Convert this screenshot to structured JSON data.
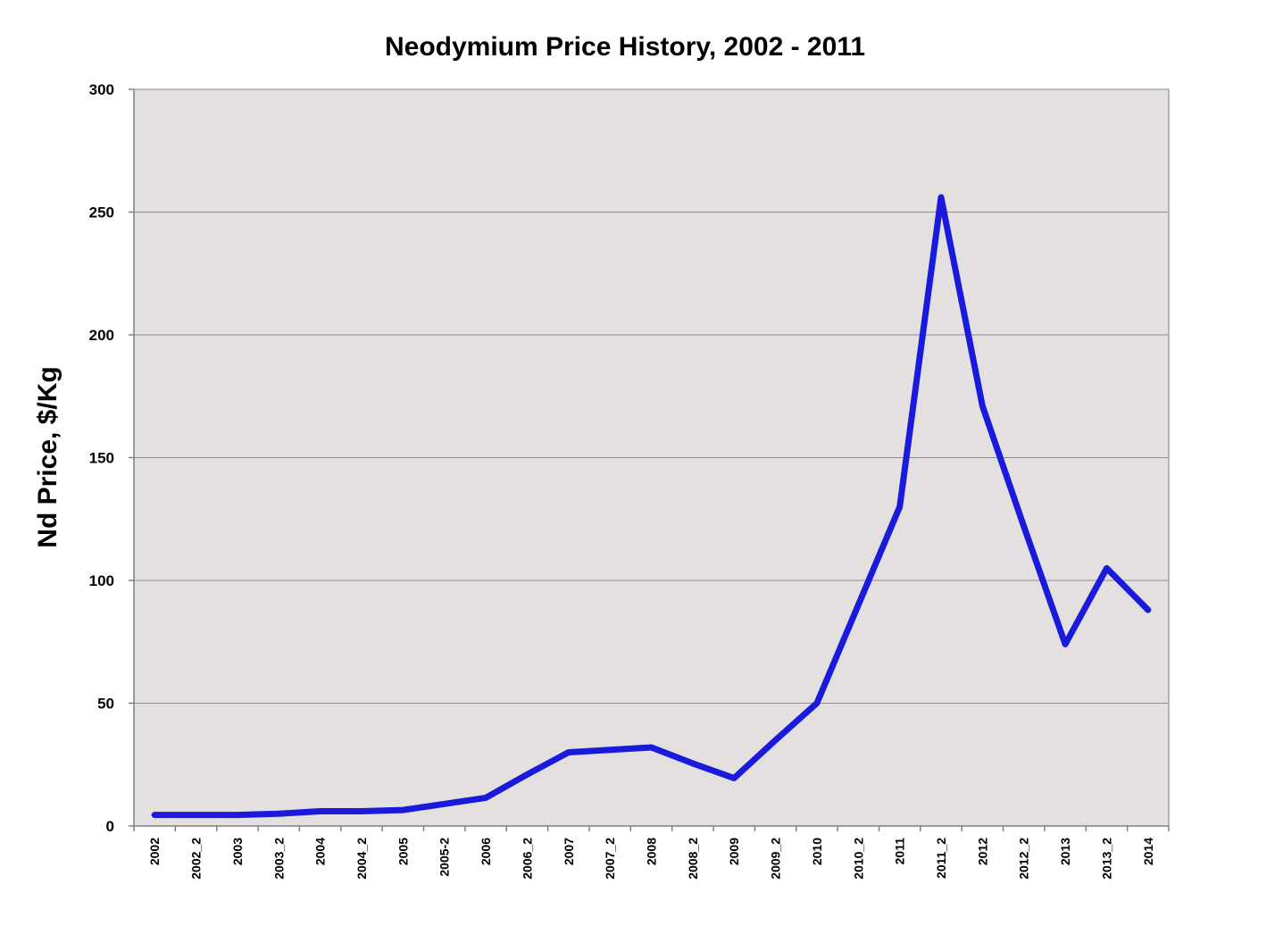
{
  "chart_data": {
    "type": "line",
    "title": "Neodymium Price History, 2002 - 2011",
    "xlabel": "",
    "ylabel": "Nd Price, $/Kg",
    "ylim": [
      0,
      300
    ],
    "yticks": [
      0,
      50,
      100,
      150,
      200,
      250,
      300
    ],
    "grid": true,
    "categories": [
      "2002",
      "2002_2",
      "2003",
      "2003_2",
      "2004",
      "2004_2",
      "2005",
      "2005-2",
      "2006",
      "2006_2",
      "2007",
      "2007_2",
      "2008",
      "2008_2",
      "2009",
      "2009_2",
      "2010",
      "2010_2",
      "2011",
      "2011_2",
      "2012",
      "2012_2",
      "2013",
      "2013_2",
      "2014"
    ],
    "series": [
      {
        "name": "Nd Price",
        "color": "#1a1adc",
        "values": [
          4.5,
          4.5,
          4.5,
          5,
          6,
          6,
          6.5,
          9,
          11.5,
          21,
          30,
          31,
          32,
          25.5,
          19.5,
          35,
          50,
          90,
          130,
          256,
          171,
          122,
          74,
          105,
          88
        ]
      }
    ],
    "colors": {
      "plot_background": "#e4e0df",
      "gridline": "#8c8c8c",
      "axis": "#808080"
    }
  }
}
